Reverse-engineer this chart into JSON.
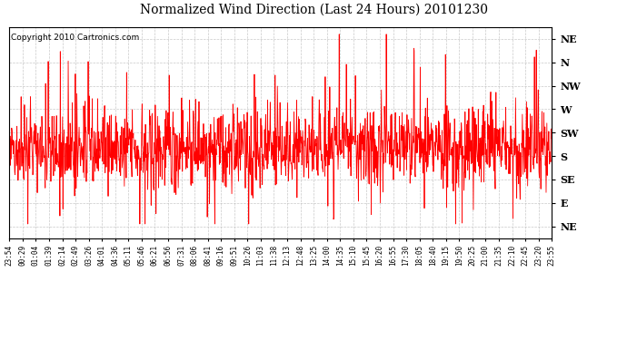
{
  "title": "Normalized Wind Direction (Last 24 Hours) 20101230",
  "copyright": "Copyright 2010 Cartronics.com",
  "background_color": "#ffffff",
  "line_color": "#ff0000",
  "grid_color": "#bbbbbb",
  "ytick_labels": [
    "NE",
    "N",
    "NW",
    "W",
    "SW",
    "S",
    "SE",
    "E",
    "NE"
  ],
  "ytick_values": [
    8,
    7,
    6,
    5,
    4,
    3,
    2,
    1,
    0
  ],
  "xtick_labels": [
    "23:54",
    "00:29",
    "01:04",
    "01:39",
    "02:14",
    "02:49",
    "03:26",
    "04:01",
    "04:36",
    "05:11",
    "05:46",
    "06:21",
    "06:56",
    "07:31",
    "08:06",
    "08:41",
    "09:16",
    "09:51",
    "10:26",
    "11:03",
    "11:38",
    "12:13",
    "12:48",
    "13:25",
    "14:00",
    "14:35",
    "15:10",
    "15:45",
    "16:20",
    "16:55",
    "17:30",
    "18:05",
    "18:40",
    "19:15",
    "19:50",
    "20:25",
    "21:00",
    "21:35",
    "22:10",
    "22:45",
    "23:20",
    "23:55"
  ],
  "ylim": [
    -0.5,
    8.5
  ],
  "seed": 42,
  "n_points": 1440,
  "base_mean": 3.3,
  "base_std": 0.7
}
